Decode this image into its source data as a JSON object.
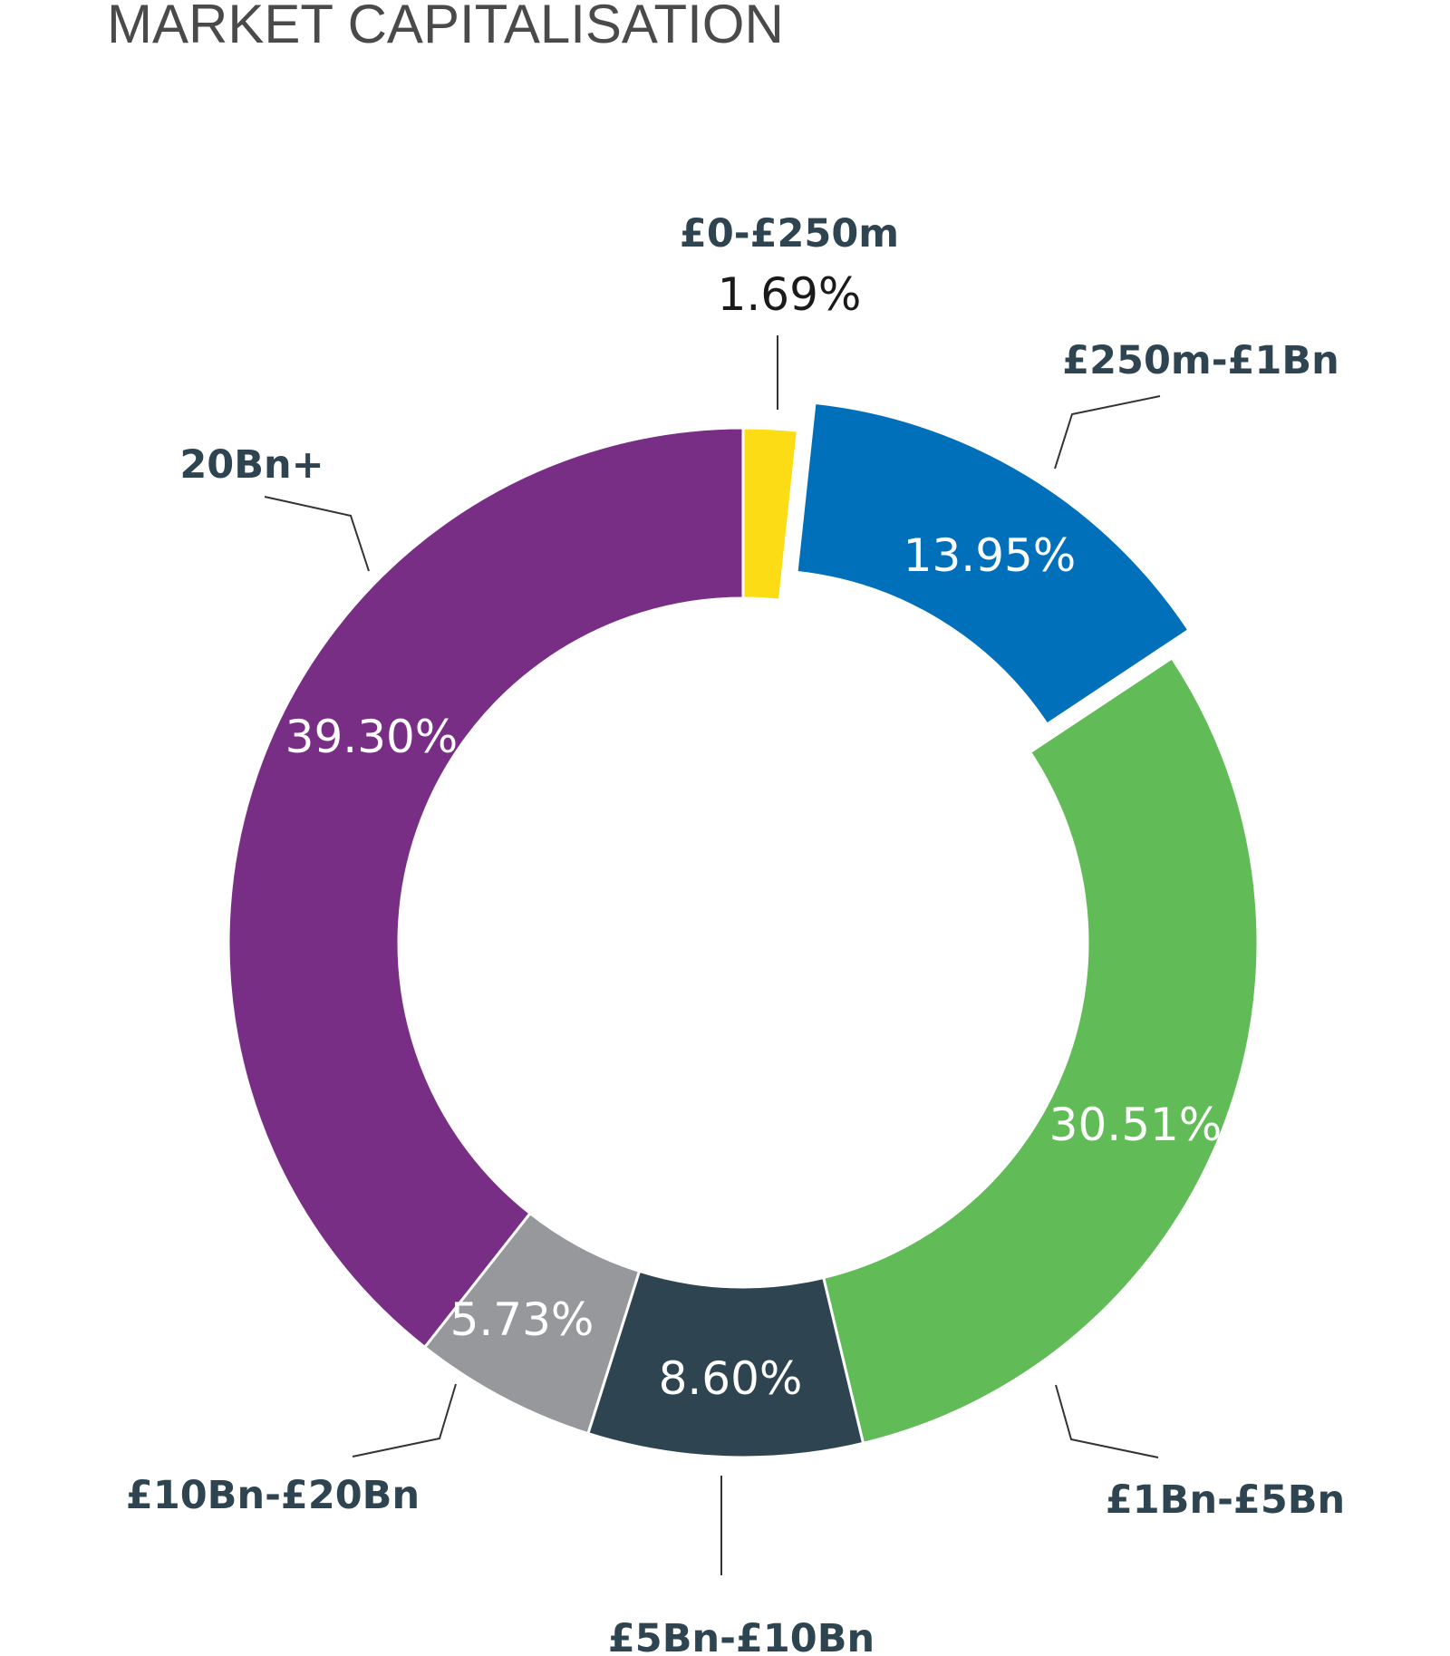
{
  "chart_data": {
    "type": "pie",
    "title": "MARKET CAPITALISATION",
    "donut": true,
    "slices": [
      {
        "label": "£0-£250m",
        "value": 1.69,
        "value_label": "1.69%",
        "color": "#fcdc14"
      },
      {
        "label": "£250m-£1Bn",
        "value": 13.95,
        "value_label": "13.95%",
        "color": "#0070bb",
        "exploded": true
      },
      {
        "label": "£1Bn-£5Bn",
        "value": 30.51,
        "value_label": "30.51%",
        "color": "#61bc58"
      },
      {
        "label": "£5Bn-£10Bn",
        "value": 8.6,
        "value_label": "8.60%",
        "color": "#2e4450"
      },
      {
        "label": "£10Bn-£20Bn",
        "value": 5.73,
        "value_label": "5.73%",
        "color": "#96989b"
      },
      {
        "label": "20Bn+",
        "value": 39.3,
        "value_label": "39.30%",
        "color": "#792e86"
      }
    ]
  }
}
